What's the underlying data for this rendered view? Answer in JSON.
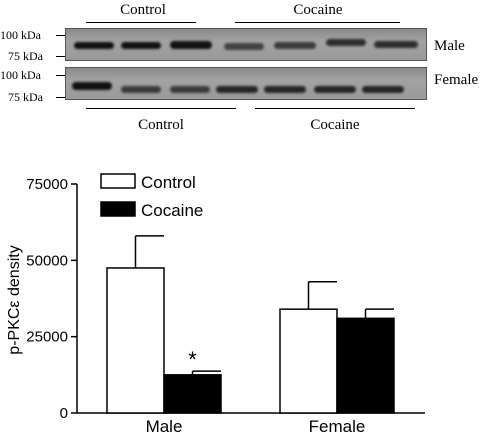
{
  "blot": {
    "top_left_label": "Control",
    "top_right_label": "Cocaine",
    "bottom_left_label": "Control",
    "bottom_right_label": "Cocaine",
    "male_label": "Male",
    "female_label": "Female",
    "male_marker_100": "100 kDa",
    "male_marker_75": "75 kDa",
    "female_marker_100": "100 kDa",
    "female_marker_75": "75 kDa"
  },
  "chart_data": {
    "type": "bar",
    "ylabel": "p-PKCε density",
    "categories": [
      "Male",
      "Female"
    ],
    "ylim": [
      0,
      75000
    ],
    "yticks": [
      0,
      25000,
      50000,
      75000
    ],
    "ytick_labels": [
      "0",
      "25000",
      "50000",
      "75000"
    ],
    "series": [
      {
        "name": "Control",
        "color": "#ffffff",
        "values": [
          47500,
          34000
        ],
        "errors": [
          10500,
          9000
        ]
      },
      {
        "name": "Cocaine",
        "color": "#000000",
        "values": [
          12500,
          31000
        ],
        "errors": [
          1200,
          3000
        ]
      }
    ],
    "legend_position": "top-left",
    "annotations": [
      {
        "text": "*",
        "category": "Male",
        "series": "Cocaine"
      }
    ]
  }
}
